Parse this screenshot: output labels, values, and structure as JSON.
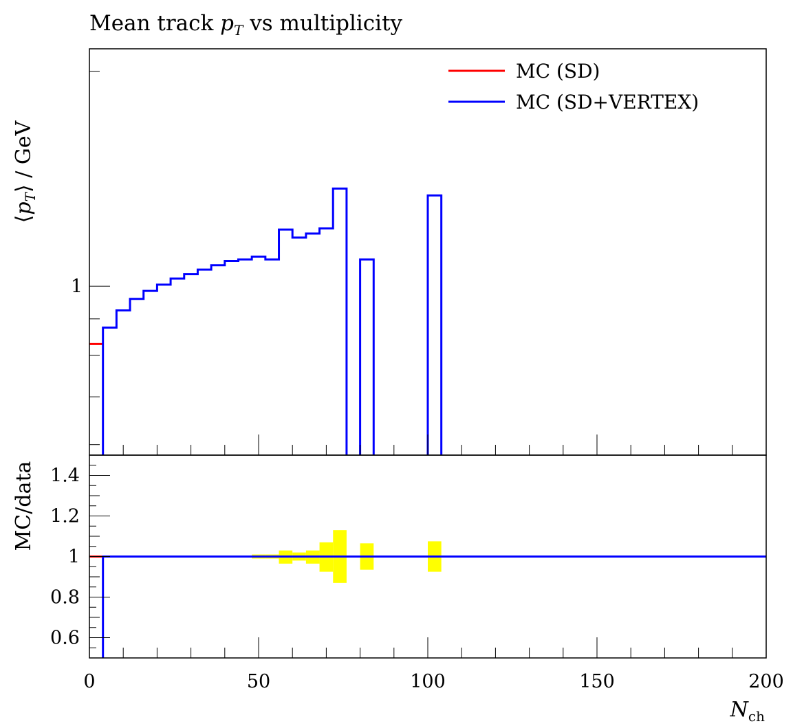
{
  "chart_data": {
    "type": "line",
    "title": "Mean track p_T vs multiplicity",
    "xlabel": "N_ch",
    "ylabel": "⟨p_T⟩ / GeV",
    "xlim": [
      0,
      200
    ],
    "x_ticks": [
      "0",
      "50",
      "100",
      "150",
      "200"
    ],
    "main_panel": {
      "ylim": [
        0.58,
        2.15
      ],
      "y_scale": "log",
      "y_tick_labels": [
        "1"
      ],
      "legend_position": "top-right",
      "series": [
        {
          "name": "MC (SD)",
          "color": "#ff0000",
          "bins": [
            {
              "x0": 0,
              "x1": 4,
              "y": 0.83
            }
          ]
        },
        {
          "name": "MC (SD+VERTEX)",
          "color": "#0000ff",
          "bins": [
            {
              "x0": 4,
              "x1": 8,
              "y": 0.875
            },
            {
              "x0": 8,
              "x1": 12,
              "y": 0.925
            },
            {
              "x0": 12,
              "x1": 16,
              "y": 0.96
            },
            {
              "x0": 16,
              "x1": 20,
              "y": 0.985
            },
            {
              "x0": 20,
              "x1": 24,
              "y": 1.005
            },
            {
              "x0": 24,
              "x1": 28,
              "y": 1.025
            },
            {
              "x0": 28,
              "x1": 32,
              "y": 1.04
            },
            {
              "x0": 32,
              "x1": 36,
              "y": 1.055
            },
            {
              "x0": 36,
              "x1": 40,
              "y": 1.07
            },
            {
              "x0": 40,
              "x1": 44,
              "y": 1.085
            },
            {
              "x0": 44,
              "x1": 48,
              "y": 1.09
            },
            {
              "x0": 48,
              "x1": 52,
              "y": 1.1
            },
            {
              "x0": 52,
              "x1": 56,
              "y": 1.09
            },
            {
              "x0": 56,
              "x1": 60,
              "y": 1.2
            },
            {
              "x0": 60,
              "x1": 64,
              "y": 1.17
            },
            {
              "x0": 64,
              "x1": 68,
              "y": 1.185
            },
            {
              "x0": 68,
              "x1": 72,
              "y": 1.205
            },
            {
              "x0": 72,
              "x1": 76,
              "y": 1.37
            },
            {
              "x0": 80,
              "x1": 84,
              "y": 1.09
            },
            {
              "x0": 100,
              "x1": 104,
              "y": 1.34
            }
          ]
        }
      ]
    },
    "ratio_panel": {
      "ylabel": "MC/data",
      "ylim": [
        0.5,
        1.5
      ],
      "y_tick_labels": [
        "0.6",
        "0.8",
        "1",
        "1.2",
        "1.4"
      ],
      "y_ticks": [
        0.6,
        0.8,
        1.0,
        1.2,
        1.4
      ],
      "reference_line": 1.0,
      "band_color": "#ffff00",
      "uncertainty_band": [
        {
          "x0": 48,
          "x1": 52,
          "lo": 0.99,
          "hi": 1.01
        },
        {
          "x0": 52,
          "x1": 56,
          "lo": 0.99,
          "hi": 1.01
        },
        {
          "x0": 56,
          "x1": 60,
          "lo": 0.965,
          "hi": 1.03
        },
        {
          "x0": 60,
          "x1": 64,
          "lo": 0.98,
          "hi": 1.02
        },
        {
          "x0": 64,
          "x1": 68,
          "lo": 0.965,
          "hi": 1.03
        },
        {
          "x0": 68,
          "x1": 72,
          "lo": 0.925,
          "hi": 1.07
        },
        {
          "x0": 72,
          "x1": 76,
          "lo": 0.87,
          "hi": 1.13
        },
        {
          "x0": 80,
          "x1": 84,
          "lo": 0.935,
          "hi": 1.065
        },
        {
          "x0": 100,
          "x1": 104,
          "lo": 0.925,
          "hi": 1.075
        }
      ],
      "series": [
        {
          "name": "MC (SD)",
          "color": "#ff0000",
          "value": 1.0
        },
        {
          "name": "MC (SD+VERTEX)",
          "color": "#0000ff",
          "value": 1.0,
          "x_start": 4
        }
      ]
    }
  }
}
